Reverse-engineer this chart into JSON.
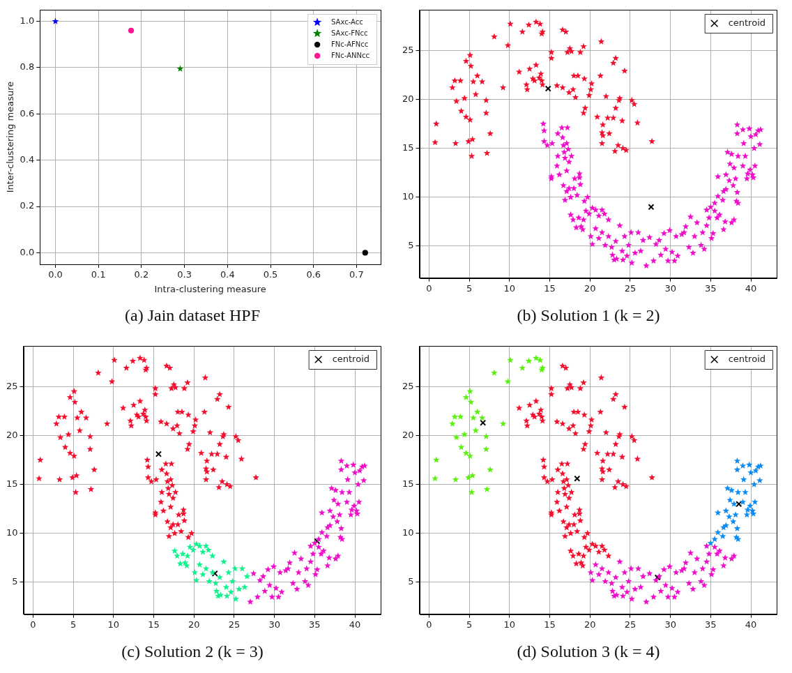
{
  "chart_data": [
    {
      "type": "scatter",
      "title": "(a) Jain dataset HPF",
      "xlabel": "Intra-clustering measure",
      "ylabel": "Inter-clustering measure",
      "xlim": [
        -0.036,
        0.756
      ],
      "ylim": [
        -0.05,
        1.05
      ],
      "xticks": [
        {
          "value": 0,
          "label": "0.0"
        },
        0.1,
        0.2,
        0.3,
        0.4,
        0.5,
        0.6,
        0.7
      ],
      "yticks": [
        {
          "value": 0,
          "label": "0.0"
        },
        0.2,
        0.4,
        0.6,
        0.8,
        {
          "value": 1,
          "label": "1.0"
        }
      ],
      "grid": true,
      "legend": "top right",
      "series": [
        {
          "name": "SAxc-Acc",
          "color": "#0000ff",
          "marker": "star",
          "x": [
            0.0
          ],
          "values": [
            1.0
          ]
        },
        {
          "name": "SAxc-FNcc",
          "color": "#008000",
          "marker": "star",
          "x": [
            0.29
          ],
          "values": [
            0.795
          ]
        },
        {
          "name": "FNc-AFNcc",
          "color": "#000000",
          "marker": "circle",
          "x": [
            0.72
          ],
          "values": [
            0.0
          ]
        },
        {
          "name": "FNc-ANNcc",
          "color": "#ff1493",
          "marker": "circle",
          "x": [
            0.176
          ],
          "values": [
            0.96
          ]
        }
      ]
    },
    {
      "type": "scatter",
      "title": "(b) Solution 1 (k = 2)",
      "xlim": [
        -1.2,
        43.2
      ],
      "ylim": [
        1.75,
        29.15
      ],
      "xticks": [
        0,
        5,
        10,
        15,
        20,
        25,
        30,
        35,
        40
      ],
      "yticks": [
        5,
        10,
        15,
        20,
        25
      ],
      "grid": true,
      "legend": "top right",
      "series": [
        {
          "color": "#f2102e",
          "marker": "star",
          "x": [
            0.9,
            0.75,
            2.9,
            3.2,
            3.9,
            3.4,
            3.3,
            4.0,
            4.4,
            4.6,
            4.6,
            5.1,
            5.2,
            5.1,
            4.9,
            5.4,
            5.3,
            5.5,
            5.8,
            6.0,
            6.6,
            7.1,
            7.1,
            7.2,
            7.6,
            8.1,
            9.2,
            9.8,
            10.1,
            11.6,
            12.4,
            13.3,
            13.8,
            14.1,
            14.0,
            11.2,
            12.1,
            12.2,
            12.5,
            12.9,
            13.3,
            13.1,
            13.9,
            14.0,
            14.1,
            13.7,
            15.2,
            15.2,
            15.9,
            16.6,
            16.6,
            17.0,
            17.5,
            17.2,
            17.7,
            17.4,
            17.9,
            18.0,
            18.2,
            18.5,
            18.8,
            19.2,
            19.3,
            19.2,
            19.4,
            19.9,
            20.1,
            20.2,
            20.9,
            21.3,
            21.4,
            21.6,
            21.5,
            21.6,
            21.5,
            22.0,
            22.4,
            22.2,
            22.9,
            22.9,
            23.2,
            23.2,
            23.1,
            23.5,
            23.6,
            23.7,
            24.0,
            24.3,
            24.1,
            24.5,
            25.2,
            25.5,
            25.9,
            27.7
          ],
          "values": [
            17.5,
            15.6,
            21.2,
            21.9,
            21.9,
            19.8,
            15.5,
            18.8,
            20.1,
            18.2,
            23.9,
            24.5,
            23.4,
            17.9,
            15.7,
            15.9,
            14.2,
            21.8,
            20.5,
            22.4,
            21.8,
            19.9,
            18.6,
            14.5,
            16.5,
            26.4,
            21.2,
            25.5,
            27.7,
            26.9,
            27.6,
            27.9,
            27.7,
            26.9,
            26.7,
            22.8,
            21.5,
            21.0,
            23.1,
            22.1,
            23.5,
            21.9,
            22.6,
            21.9,
            21.5,
            22.2,
            24.8,
            24.2,
            21.4,
            21.2,
            27.1,
            26.9,
            25.2,
            24.8,
            24.9,
            20.7,
            21.0,
            22.4,
            20.2,
            22.4,
            24.8,
            25.4,
            22.1,
            18.6,
            19.1,
            20.4,
            21.0,
            21.6,
            18.2,
            22.4,
            25.9,
            17.4,
            16.6,
            16.3,
            15.5,
            20.3,
            16.5,
            18.1,
            18.1,
            23.7,
            24.2,
            19.1,
            14.7,
            15.3,
            19.9,
            20.1,
            17.8,
            22.9,
            15.0,
            14.8,
            19.9,
            19.5,
            17.6,
            15.7
          ]
        },
        {
          "color": "#f00ecb",
          "marker": "star",
          "x": [
            14.2,
            14.3,
            14.3,
            14.7,
            15.3,
            15.2,
            15.2,
            15.9,
            16.0,
            16.0,
            16.2,
            16.5,
            16.6,
            16.7,
            16.8,
            16.9,
            17.1,
            17.2,
            17.3,
            17.4,
            17.1,
            17.7,
            16.7,
            17.1,
            16.9,
            17.6,
            17.4,
            18.0,
            18.1,
            18.7,
            18.8,
            18.4,
            18.7,
            19.3,
            19.7,
            17.6,
            17.9,
            18.3,
            18.9,
            19.2,
            19.5,
            19.9,
            20.3,
            20.7,
            21.1,
            21.5,
            21.8,
            22.3,
            19.1,
            18.6,
            20.1,
            20.3,
            20.7,
            21.1,
            21.5,
            21.9,
            22.3,
            22.7,
            22.8,
            23.2,
            23.3,
            23.7,
            24.0,
            24.3,
            24.6,
            24.8,
            25.1,
            25.2,
            25.6,
            26.0,
            26.3,
            26.6,
            24.1,
            23.0,
            27.0,
            27.4,
            27.9,
            28.2,
            28.6,
            28.8,
            29.2,
            29.4,
            29.7,
            29.9,
            30.2,
            30.5,
            30.7,
            30.9,
            31.4,
            31.7,
            31.9,
            32.3,
            32.5,
            32.8,
            33.0,
            33.3,
            33.8,
            34.0,
            34.2,
            34.5,
            34.8,
            35.1,
            35.3,
            35.8,
            36.1,
            36.6,
            36.8,
            37.6,
            37.9,
            34.5,
            35.5,
            35.0,
            35.5,
            35.9,
            36.5,
            36.6,
            36.9,
            35.9,
            36.9,
            37.4,
            37.3,
            37.8,
            38.3,
            38.2,
            38.4,
            37.9,
            38.1,
            37.1,
            37.6,
            38.4,
            38.3,
            38.3,
            39.0,
            39.1,
            39.3,
            39.0,
            39.5,
            39.6,
            39.8,
            40.0,
            39.9,
            40.2,
            40.4,
            40.5,
            40.6,
            40.9,
            41.1,
            41.2,
            40.3
          ],
          "values": [
            17.5,
            16.8,
            15.7,
            15.3,
            15.5,
            11.9,
            12.1,
            13.2,
            14.2,
            16.5,
            12.3,
            17.1,
            16.1,
            15.3,
            14.6,
            14.0,
            15.5,
            17.1,
            14.9,
            13.6,
            12.7,
            14.2,
            11.2,
            10.6,
            9.7,
            10.0,
            10.9,
            10.9,
            11.9,
            12.4,
            11.3,
            10.2,
            12.0,
            9.6,
            10.0,
            8.2,
            7.7,
            6.9,
            7.0,
            7.7,
            8.6,
            8.3,
            8.9,
            8.7,
            8.1,
            8.7,
            8.3,
            7.7,
            6.7,
            7.9,
            6.0,
            5.2,
            6.8,
            5.8,
            6.4,
            5.1,
            6.0,
            4.9,
            4.1,
            5.5,
            3.7,
            7.1,
            4.5,
            6.0,
            4.0,
            5.1,
            6.4,
            3.3,
            4.3,
            6.4,
            4.5,
            5.6,
            3.6,
            3.6,
            3.0,
            5.9,
            3.5,
            5.2,
            5.6,
            4.1,
            6.3,
            4.7,
            3.5,
            6.6,
            4.4,
            3.5,
            6.0,
            4.0,
            6.2,
            6.4,
            7.0,
            4.9,
            8.0,
            4.3,
            6.0,
            7.4,
            5.1,
            6.4,
            4.7,
            7.1,
            7.9,
            5.8,
            6.3,
            7.9,
            8.2,
            6.7,
            7.5,
            7.4,
            7.7,
            8.7,
            8.6,
            9.0,
            9.4,
            10.1,
            9.7,
            10.6,
            10.8,
            12.1,
            12.3,
            13.4,
            11.7,
            11.2,
            10.5,
            9.6,
            9.4,
            13.0,
            11.9,
            14.6,
            14.4,
            14.2,
            17.4,
            16.5,
            16.9,
            15.5,
            14.2,
            13.2,
            11.9,
            12.4,
            17.0,
            16.2,
            12.8,
            12.3,
            15.0,
            13.2,
            16.4,
            16.8,
            15.4,
            16.9,
            12.0
          ]
        },
        {
          "name": "centroid",
          "color": "#000000",
          "marker": "cross",
          "x": [
            14.8,
            27.6
          ],
          "values": [
            21.1,
            9.0
          ]
        }
      ]
    },
    {
      "type": "scatter",
      "title": "(c) Solution 2 (k = 3)",
      "xlim": [
        -1.2,
        43.2
      ],
      "ylim": [
        1.75,
        29.15
      ],
      "xticks": [
        0,
        5,
        10,
        15,
        20,
        25,
        30,
        35,
        40
      ],
      "yticks": [
        5,
        10,
        15,
        20,
        25
      ],
      "grid": true,
      "legend": "top right",
      "series": [
        {
          "color": "#f2102e",
          "marker": "star",
          "x": [
            0.9,
            0.75,
            2.9,
            3.2,
            3.9,
            3.4,
            3.3,
            4.0,
            4.4,
            4.6,
            4.6,
            5.1,
            5.2,
            5.1,
            4.9,
            5.4,
            5.3,
            5.5,
            5.8,
            6.0,
            6.6,
            7.1,
            7.1,
            7.2,
            7.6,
            8.1,
            9.2,
            9.8,
            10.1,
            11.6,
            12.4,
            13.3,
            13.8,
            14.1,
            14.0,
            11.2,
            12.1,
            12.2,
            12.5,
            12.9,
            13.3,
            13.1,
            13.9,
            14.0,
            14.1,
            13.7,
            15.2,
            15.2,
            15.9,
            16.6,
            16.6,
            17.0,
            17.5,
            17.2,
            17.7,
            17.4,
            17.9,
            18.0,
            18.2,
            18.5,
            18.8,
            19.2,
            19.3,
            19.2,
            19.4,
            19.9,
            20.1,
            20.2,
            20.9,
            21.3,
            21.4,
            21.6,
            21.5,
            21.6,
            21.5,
            22.0,
            22.4,
            22.2,
            22.9,
            22.9,
            23.2,
            23.2,
            23.1,
            23.5,
            23.6,
            23.7,
            24.0,
            24.3,
            24.1,
            24.5,
            25.2,
            25.5,
            25.9,
            27.7,
            14.2,
            14.3,
            14.3,
            14.7,
            15.3,
            15.2,
            15.2,
            15.9,
            16.0,
            16.0,
            16.2,
            16.5,
            16.6,
            16.7,
            16.8,
            16.9,
            17.1,
            17.2,
            17.3,
            17.4,
            17.1,
            17.7,
            16.7,
            17.1,
            16.9,
            17.6,
            17.4,
            18.0,
            18.1,
            18.7,
            18.8,
            18.4,
            18.7,
            19.3,
            19.7
          ],
          "values": [
            17.5,
            15.6,
            21.2,
            21.9,
            21.9,
            19.8,
            15.5,
            18.8,
            20.1,
            18.2,
            23.9,
            24.5,
            23.4,
            17.9,
            15.7,
            15.9,
            14.2,
            21.8,
            20.5,
            22.4,
            21.8,
            19.9,
            18.6,
            14.5,
            16.5,
            26.4,
            21.2,
            25.5,
            27.7,
            26.9,
            27.6,
            27.9,
            27.7,
            26.9,
            26.7,
            22.8,
            21.5,
            21.0,
            23.1,
            22.1,
            23.5,
            21.9,
            22.6,
            21.9,
            21.5,
            22.2,
            24.8,
            24.2,
            21.4,
            21.2,
            27.1,
            26.9,
            25.2,
            24.8,
            24.9,
            20.7,
            21.0,
            22.4,
            20.2,
            22.4,
            24.8,
            25.4,
            22.1,
            18.6,
            19.1,
            20.4,
            21.0,
            21.6,
            18.2,
            22.4,
            25.9,
            17.4,
            16.6,
            16.3,
            15.5,
            20.3,
            16.5,
            18.1,
            18.1,
            23.7,
            24.2,
            19.1,
            14.7,
            15.3,
            19.9,
            20.1,
            17.8,
            22.9,
            15.0,
            14.8,
            19.9,
            19.5,
            17.6,
            15.7,
            17.5,
            16.8,
            15.7,
            15.3,
            15.5,
            11.9,
            12.1,
            13.2,
            14.2,
            16.5,
            12.3,
            17.1,
            16.1,
            15.3,
            14.6,
            14.0,
            15.5,
            17.1,
            14.9,
            13.6,
            12.7,
            14.2,
            11.2,
            10.6,
            9.7,
            10.0,
            10.9,
            10.9,
            11.9,
            12.4,
            11.3,
            10.2,
            12.0,
            9.6,
            10.0
          ]
        },
        {
          "color": "#11f28c",
          "marker": "star",
          "x": [
            17.6,
            17.9,
            18.3,
            18.9,
            19.2,
            19.5,
            19.9,
            20.3,
            20.7,
            21.1,
            21.5,
            21.8,
            22.3,
            19.1,
            18.6,
            20.1,
            20.3,
            20.7,
            21.1,
            21.5,
            21.9,
            22.3,
            22.7,
            22.8,
            23.2,
            23.3,
            23.7,
            24.0,
            24.3,
            24.6,
            24.8,
            25.1,
            25.2,
            25.6,
            26.0,
            26.3,
            26.6,
            24.1,
            23.0
          ],
          "values": [
            8.2,
            7.7,
            6.9,
            7.0,
            7.7,
            8.6,
            8.3,
            8.9,
            8.7,
            8.1,
            8.7,
            8.3,
            7.7,
            6.7,
            7.9,
            6.0,
            5.2,
            6.8,
            5.8,
            6.4,
            5.1,
            6.0,
            4.9,
            4.1,
            5.5,
            3.7,
            7.1,
            4.5,
            6.0,
            4.0,
            5.1,
            6.4,
            3.3,
            4.3,
            6.4,
            4.5,
            5.6,
            3.6,
            3.6
          ]
        },
        {
          "color": "#f00ecb",
          "marker": "star",
          "x": [
            27.0,
            27.4,
            27.9,
            28.2,
            28.6,
            28.8,
            29.2,
            29.4,
            29.7,
            29.9,
            30.2,
            30.5,
            30.7,
            30.9,
            31.4,
            31.7,
            31.9,
            32.3,
            32.5,
            32.8,
            33.0,
            33.3,
            33.8,
            34.0,
            34.2,
            34.5,
            34.8,
            35.1,
            35.3,
            35.8,
            36.1,
            36.6,
            36.8,
            37.6,
            37.9,
            34.5,
            35.5,
            35.0,
            35.5,
            35.9,
            36.5,
            36.6,
            36.9,
            35.9,
            36.9,
            37.4,
            37.3,
            37.8,
            38.3,
            38.2,
            38.4,
            37.9,
            38.1,
            37.1,
            37.6,
            38.4,
            38.3,
            38.3,
            39.0,
            39.1,
            39.3,
            39.0,
            39.5,
            39.6,
            39.8,
            40.0,
            39.9,
            40.2,
            40.4,
            40.5,
            40.6,
            40.9,
            41.1,
            41.2,
            40.3
          ],
          "values": [
            3.0,
            5.9,
            3.5,
            5.2,
            5.6,
            4.1,
            6.3,
            4.7,
            3.5,
            6.6,
            4.4,
            3.5,
            6.0,
            4.0,
            6.2,
            6.4,
            7.0,
            4.9,
            8.0,
            4.3,
            6.0,
            7.4,
            5.1,
            6.4,
            4.7,
            7.1,
            7.9,
            5.8,
            6.3,
            7.9,
            8.2,
            6.7,
            7.5,
            7.4,
            7.7,
            8.7,
            8.6,
            9.0,
            9.4,
            10.1,
            9.7,
            10.6,
            10.8,
            12.1,
            12.3,
            13.4,
            11.7,
            11.2,
            10.5,
            9.6,
            9.4,
            13.0,
            11.9,
            14.6,
            14.4,
            14.2,
            17.4,
            16.5,
            16.9,
            15.5,
            14.2,
            13.2,
            11.9,
            12.4,
            17.0,
            16.2,
            12.8,
            12.3,
            15.0,
            13.2,
            16.4,
            16.8,
            15.4,
            16.9,
            12.0
          ]
        },
        {
          "name": "centroid",
          "color": "#000000",
          "marker": "cross",
          "x": [
            15.6,
            22.6,
            35.3
          ],
          "values": [
            18.1,
            5.9,
            9.2
          ]
        }
      ]
    },
    {
      "type": "scatter",
      "title": "(d) Solution 3 (k = 4)",
      "xlim": [
        -1.2,
        43.2
      ],
      "ylim": [
        1.75,
        29.15
      ],
      "xticks": [
        0,
        5,
        10,
        15,
        20,
        25,
        30,
        35,
        40
      ],
      "yticks": [
        5,
        10,
        15,
        20,
        25
      ],
      "grid": true,
      "legend": "top right",
      "series": [
        {
          "color": "#5cf00f",
          "marker": "star",
          "x": [
            0.9,
            0.75,
            2.9,
            3.2,
            3.9,
            3.4,
            3.3,
            4.0,
            4.4,
            4.6,
            4.6,
            5.1,
            5.2,
            5.1,
            4.9,
            5.4,
            5.3,
            5.5,
            5.8,
            6.0,
            6.6,
            7.1,
            7.1,
            7.2,
            7.6,
            8.1,
            9.2,
            9.8,
            10.1,
            11.6,
            12.4,
            13.3,
            13.8,
            14.1,
            14.0
          ],
          "values": [
            17.5,
            15.6,
            21.2,
            21.9,
            21.9,
            19.8,
            15.5,
            18.8,
            20.1,
            18.2,
            23.9,
            24.5,
            23.4,
            17.9,
            15.7,
            15.9,
            14.2,
            21.8,
            20.5,
            22.4,
            21.8,
            19.9,
            18.6,
            14.5,
            16.5,
            26.4,
            21.2,
            25.5,
            27.7,
            26.9,
            27.6,
            27.9,
            27.7,
            26.9,
            26.7
          ]
        },
        {
          "color": "#f2102e",
          "marker": "star",
          "x": [
            11.2,
            12.1,
            12.2,
            12.5,
            12.9,
            13.3,
            13.1,
            13.9,
            14.0,
            14.1,
            13.7,
            15.2,
            15.2,
            15.9,
            16.6,
            16.6,
            17.0,
            17.5,
            17.2,
            17.7,
            17.4,
            17.9,
            18.0,
            18.2,
            18.5,
            18.8,
            19.2,
            19.3,
            19.2,
            19.4,
            19.9,
            20.1,
            20.2,
            20.9,
            21.3,
            21.4,
            21.6,
            21.5,
            21.6,
            21.5,
            22.0,
            22.4,
            22.2,
            22.9,
            22.9,
            23.2,
            23.2,
            23.1,
            23.5,
            23.6,
            23.7,
            24.0,
            24.3,
            24.1,
            24.5,
            25.2,
            25.5,
            25.9,
            27.7,
            14.2,
            14.3,
            14.3,
            14.7,
            15.3,
            15.2,
            15.2,
            15.9,
            16.0,
            16.0,
            16.2,
            16.5,
            16.6,
            16.7,
            16.8,
            16.9,
            17.1,
            17.2,
            17.3,
            17.4,
            17.1,
            17.7,
            16.7,
            17.1,
            16.9,
            17.6,
            17.4,
            18.0,
            18.1,
            18.7,
            18.8,
            18.4,
            18.7,
            19.3,
            19.7,
            17.6,
            17.9,
            18.3,
            18.9,
            19.2,
            19.5,
            19.9,
            20.3,
            20.7,
            21.1,
            21.5,
            21.8,
            22.3,
            19.1,
            18.6
          ],
          "values": [
            22.8,
            21.5,
            21.0,
            23.1,
            22.1,
            23.5,
            21.9,
            22.6,
            21.9,
            21.5,
            22.2,
            24.8,
            24.2,
            21.4,
            21.2,
            27.1,
            26.9,
            25.2,
            24.8,
            24.9,
            20.7,
            21.0,
            22.4,
            20.2,
            22.4,
            24.8,
            25.4,
            22.1,
            18.6,
            19.1,
            20.4,
            21.0,
            21.6,
            18.2,
            22.4,
            25.9,
            17.4,
            16.6,
            16.3,
            15.5,
            20.3,
            16.5,
            18.1,
            18.1,
            23.7,
            24.2,
            19.1,
            14.7,
            15.3,
            19.9,
            20.1,
            17.8,
            22.9,
            15.0,
            14.8,
            19.9,
            19.5,
            17.6,
            15.7,
            17.5,
            16.8,
            15.7,
            15.3,
            15.5,
            11.9,
            12.1,
            13.2,
            14.2,
            16.5,
            12.3,
            17.1,
            16.1,
            15.3,
            14.6,
            14.0,
            15.5,
            17.1,
            14.9,
            13.6,
            12.7,
            14.2,
            11.2,
            10.6,
            9.7,
            10.0,
            10.9,
            10.9,
            11.9,
            12.4,
            11.3,
            10.2,
            12.0,
            9.6,
            10.0,
            8.2,
            7.7,
            6.9,
            7.0,
            7.7,
            8.6,
            8.3,
            8.9,
            8.7,
            8.1,
            8.7,
            8.3,
            7.7,
            6.7,
            7.9
          ]
        },
        {
          "color": "#f00ecb",
          "marker": "star",
          "x": [
            20.1,
            20.3,
            20.7,
            21.1,
            21.5,
            21.9,
            22.3,
            22.7,
            22.8,
            23.2,
            23.3,
            23.7,
            24.0,
            24.3,
            24.6,
            24.8,
            25.1,
            25.2,
            25.6,
            26.0,
            26.3,
            26.6,
            24.1,
            23.0,
            27.0,
            27.4,
            27.9,
            28.2,
            28.6,
            28.8,
            29.2,
            29.4,
            29.7,
            29.9,
            30.2,
            30.5,
            30.7,
            30.9,
            31.4,
            31.7,
            31.9,
            32.3,
            32.5,
            32.8,
            33.0,
            33.3,
            33.8,
            34.0,
            34.2,
            34.5,
            34.8,
            35.1,
            35.3,
            35.8,
            36.1,
            36.6,
            36.8,
            37.6,
            37.9,
            34.5,
            35.5
          ],
          "values": [
            6.0,
            5.2,
            6.8,
            5.8,
            6.4,
            5.1,
            6.0,
            4.9,
            4.1,
            5.5,
            3.7,
            7.1,
            4.5,
            6.0,
            4.0,
            5.1,
            6.4,
            3.3,
            4.3,
            6.4,
            4.5,
            5.6,
            3.6,
            3.6,
            3.0,
            5.9,
            3.5,
            5.2,
            5.6,
            4.1,
            6.3,
            4.7,
            3.5,
            6.6,
            4.4,
            3.5,
            6.0,
            4.0,
            6.2,
            6.4,
            7.0,
            4.9,
            8.0,
            4.3,
            6.0,
            7.4,
            5.1,
            6.4,
            4.7,
            7.1,
            7.9,
            5.8,
            6.3,
            7.9,
            8.2,
            6.7,
            7.5,
            7.4,
            7.7,
            8.7,
            8.6
          ]
        },
        {
          "color": "#0c8cf2",
          "marker": "star",
          "x": [
            35.0,
            35.5,
            35.9,
            36.5,
            36.6,
            36.9,
            35.9,
            36.9,
            37.4,
            37.3,
            37.8,
            38.3,
            38.2,
            38.4,
            37.9,
            38.1,
            37.1,
            37.6,
            38.4,
            38.3,
            38.3,
            39.0,
            39.1,
            39.3,
            39.0,
            39.5,
            39.6,
            39.8,
            40.0,
            39.9,
            40.2,
            40.4,
            40.5,
            40.6,
            40.9,
            41.1,
            41.2,
            40.3
          ],
          "values": [
            9.0,
            9.4,
            10.1,
            9.7,
            10.6,
            10.8,
            12.1,
            12.3,
            13.4,
            11.7,
            11.2,
            10.5,
            9.6,
            9.4,
            13.0,
            11.9,
            14.6,
            14.4,
            14.2,
            17.4,
            16.5,
            16.9,
            15.5,
            14.2,
            13.2,
            11.9,
            12.4,
            17.0,
            16.2,
            12.8,
            12.3,
            15.0,
            13.2,
            16.4,
            16.8,
            15.4,
            16.9,
            12.0
          ]
        },
        {
          "name": "centroid",
          "color": "#000000",
          "marker": "cross",
          "x": [
            6.7,
            18.4,
            28.4,
            38.5
          ],
          "values": [
            21.3,
            15.6,
            5.5,
            13.0
          ]
        }
      ]
    }
  ]
}
